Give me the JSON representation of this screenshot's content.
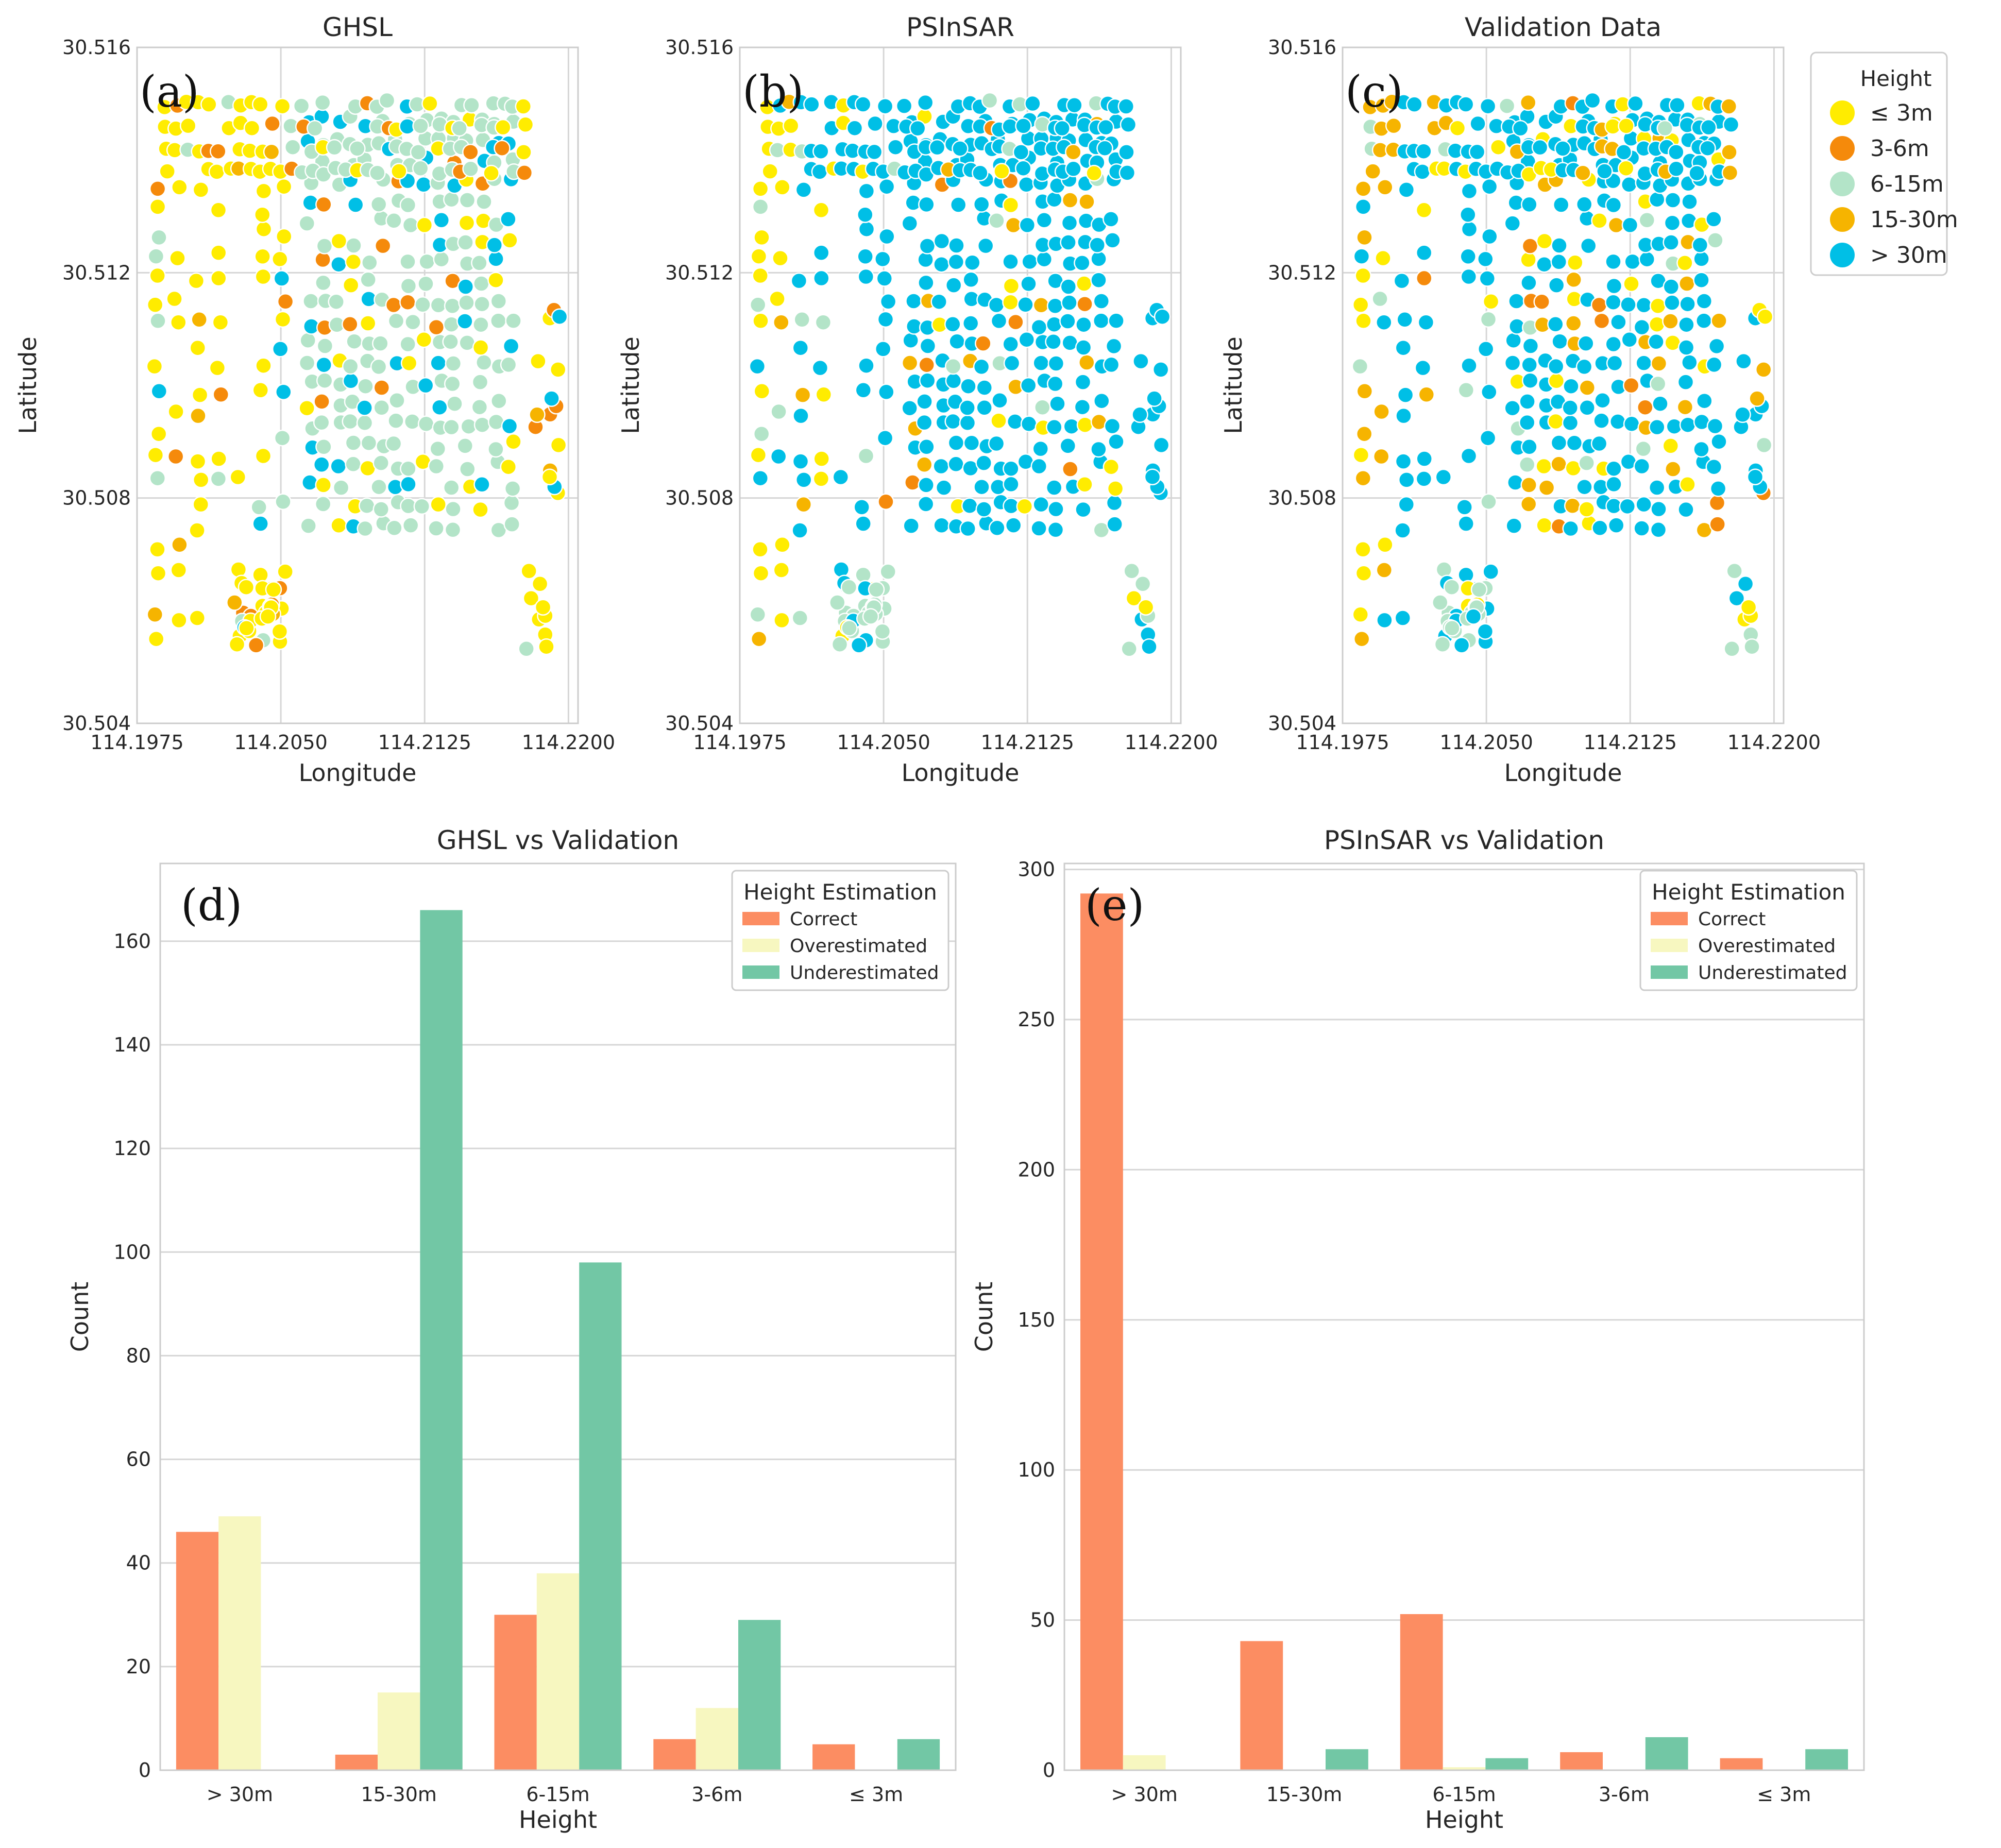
{
  "figure": {
    "height_legend": {
      "title": "Height",
      "items": [
        {
          "label": "≤ 3m",
          "color": "#ffec00"
        },
        {
          "label": "3-6m",
          "color": "#f58a0b"
        },
        {
          "label": "6-15m",
          "color": "#b3e4c8"
        },
        {
          "label": "15-30m",
          "color": "#f6b400"
        },
        {
          "label": "> 30m",
          "color": "#00bfe6"
        }
      ]
    }
  },
  "chart_data": [
    {
      "type": "scatter",
      "panel_label": "(a)",
      "title": "GHSL",
      "xlabel": "Longitude",
      "ylabel": "Latitude",
      "xlim": [
        114.1975,
        114.2205
      ],
      "ylim": [
        30.504,
        30.516
      ],
      "xticks": [
        114.1975,
        114.205,
        114.2125,
        114.22
      ],
      "xtick_labels": [
        "114.1975",
        "114.2050",
        "114.2125",
        "114.2200"
      ],
      "yticks": [
        30.504,
        30.508,
        30.512,
        30.516
      ],
      "ytick_labels": [
        "30.504",
        "30.508",
        "30.512",
        "30.516"
      ],
      "grid": true,
      "dominant_classes": [
        "≤ 3m",
        "6-15m",
        "> 30m"
      ],
      "notes": "Points colored by height class; west and south dominated by ≤ 3m, central block by 6-15m, scattered > 30m"
    },
    {
      "type": "scatter",
      "panel_label": "(b)",
      "title": "PSInSAR",
      "xlabel": "Longitude",
      "ylabel": "Latitude",
      "xlim": [
        114.1975,
        114.2205
      ],
      "ylim": [
        30.504,
        30.516
      ],
      "xticks": [
        114.1975,
        114.205,
        114.2125,
        114.22
      ],
      "xtick_labels": [
        "114.1975",
        "114.2050",
        "114.2125",
        "114.2200"
      ],
      "yticks": [
        30.504,
        30.508,
        30.512,
        30.516
      ],
      "ytick_labels": [
        "30.504",
        "30.508",
        "30.512",
        "30.516"
      ],
      "grid": true,
      "dominant_classes": [
        "> 30m",
        "≤ 3m",
        "6-15m"
      ],
      "notes": "Majority of points > 30m"
    },
    {
      "type": "scatter",
      "panel_label": "(c)",
      "title": "Validation Data",
      "xlabel": "Longitude",
      "ylabel": "Latitude",
      "xlim": [
        114.1975,
        114.2205
      ],
      "ylim": [
        30.504,
        30.516
      ],
      "xticks": [
        114.1975,
        114.205,
        114.2125,
        114.22
      ],
      "xtick_labels": [
        "114.1975",
        "114.2050",
        "114.2125",
        "114.2200"
      ],
      "yticks": [
        30.504,
        30.508,
        30.512,
        30.516
      ],
      "ytick_labels": [
        "30.504",
        "30.508",
        "30.512",
        "30.516"
      ],
      "grid": true,
      "dominant_classes": [
        "> 30m",
        "≤ 3m",
        "15-30m"
      ],
      "notes": "Majority of points > 30m"
    },
    {
      "type": "bar",
      "panel_label": "(d)",
      "title": "GHSL vs Validation",
      "xlabel": "Height",
      "ylabel": "Count",
      "categories": [
        "> 30m",
        "15-30m",
        "6-15m",
        "3-6m",
        "≤ 3m"
      ],
      "series": [
        {
          "name": "Correct",
          "color": "#fc8d62",
          "values": [
            46,
            3,
            30,
            6,
            5
          ]
        },
        {
          "name": "Overestimated",
          "color": "#f7f7c0",
          "values": [
            49,
            15,
            38,
            12,
            0
          ]
        },
        {
          "name": "Underestimated",
          "color": "#72c7a5",
          "values": [
            0,
            166,
            98,
            29,
            6
          ]
        }
      ],
      "ylim": [
        0,
        175
      ],
      "yticks": [
        0,
        20,
        40,
        60,
        80,
        100,
        120,
        140,
        160
      ],
      "legend": {
        "title": "Height Estimation",
        "position": "top-right"
      },
      "grid": true
    },
    {
      "type": "bar",
      "panel_label": "(e)",
      "title": "PSInSAR vs Validation",
      "xlabel": "Height",
      "ylabel": "Count",
      "categories": [
        "> 30m",
        "15-30m",
        "6-15m",
        "3-6m",
        "≤ 3m"
      ],
      "series": [
        {
          "name": "Correct",
          "color": "#fc8d62",
          "values": [
            292,
            43,
            52,
            6,
            4
          ]
        },
        {
          "name": "Overestimated",
          "color": "#f7f7c0",
          "values": [
            5,
            0,
            1,
            0,
            0
          ]
        },
        {
          "name": "Underestimated",
          "color": "#72c7a5",
          "values": [
            0,
            7,
            4,
            11,
            7
          ]
        }
      ],
      "ylim": [
        0,
        302
      ],
      "yticks": [
        0,
        50,
        100,
        150,
        200,
        250,
        300
      ],
      "legend": {
        "title": "Height Estimation",
        "position": "top-right"
      },
      "grid": true
    }
  ]
}
